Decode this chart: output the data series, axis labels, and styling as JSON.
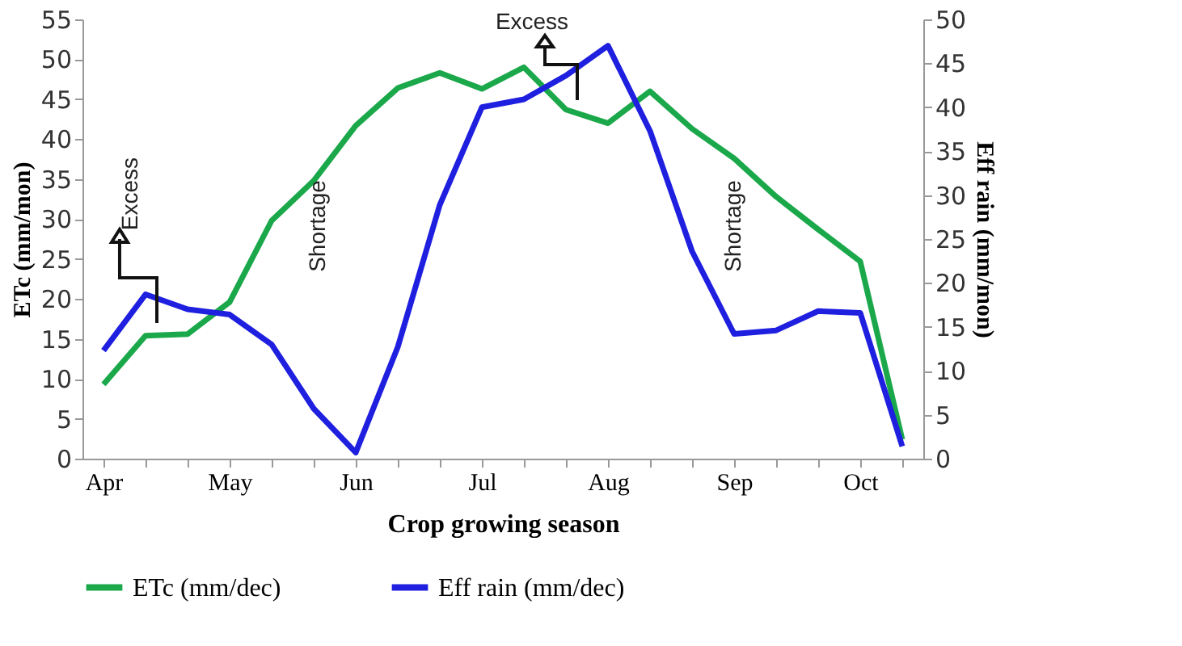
{
  "chart_data": {
    "type": "line",
    "xlabel": "Crop growing season",
    "ylabel": "ETc (mm/mon)",
    "y2label": "Eff rain (mm/mon)",
    "categories": [
      "Apr",
      null,
      null,
      "May",
      null,
      null,
      "Jun",
      null,
      null,
      "Jul",
      null,
      null,
      "Aug",
      null,
      null,
      "Sep",
      null,
      null,
      "Oct",
      null
    ],
    "series": [
      {
        "name": "ETc (mm/dec)",
        "color": "#1aa84a",
        "values": [
          9.3,
          15.4,
          15.6,
          19.6,
          29.8,
          34.8,
          41.7,
          46.4,
          48.3,
          46.3,
          49,
          43.7,
          42,
          46,
          41.3,
          37.6,
          32.8,
          28.7,
          24.7,
          2.4
        ]
      },
      {
        "name": "Eff rain (mm/dec)",
        "color": "#1f1fe0",
        "axis": "y2",
        "values": [
          12.3,
          18.7,
          17,
          16.4,
          13,
          5.7,
          0.7,
          12.7,
          28.9,
          40,
          40.9,
          43.6,
          47,
          37.3,
          23.6,
          14.2,
          14.6,
          16.8,
          16.6,
          1.4
        ]
      }
    ],
    "ylim": [
      0,
      55
    ],
    "yticks": [
      0,
      5,
      10,
      15,
      20,
      25,
      30,
      35,
      40,
      45,
      50,
      55
    ],
    "y2lim": [
      0,
      50
    ],
    "y2ticks": [
      0,
      5,
      10,
      15,
      20,
      25,
      30,
      35,
      40,
      45,
      50
    ],
    "annotations": [
      "Excess",
      "Shortage",
      "Excess",
      "Shortage"
    ],
    "grid": false,
    "legend": "bottom",
    "marker": "none",
    "line_style": "solid"
  }
}
